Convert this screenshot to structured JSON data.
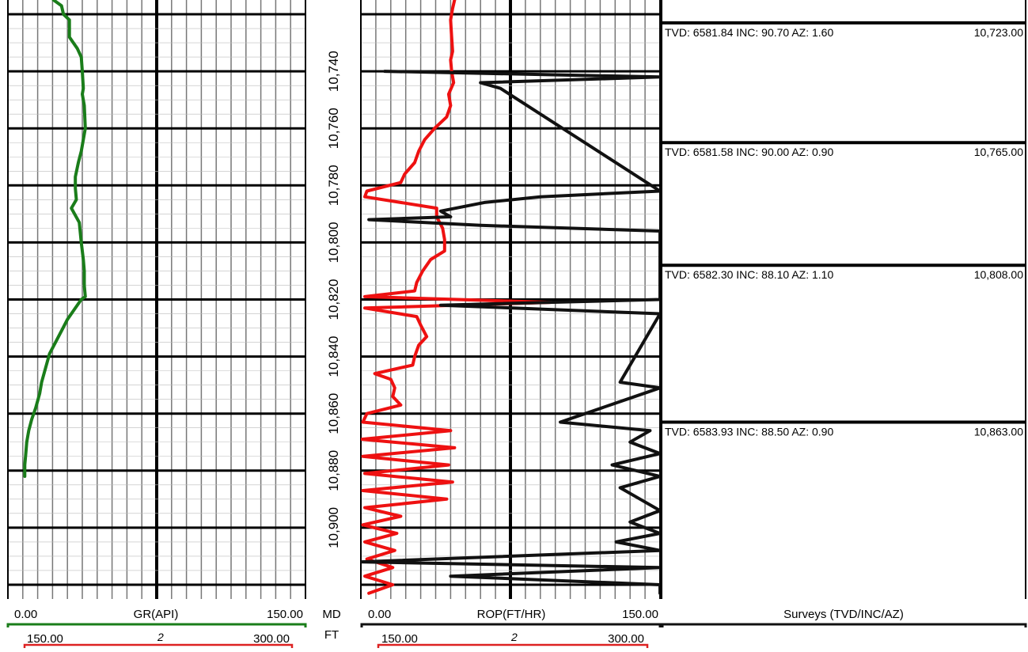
{
  "chart_data": {
    "type": "line",
    "depth_axis": {
      "label": "MD",
      "unit": "FT",
      "range": [
        10715,
        10925
      ],
      "ticks": [
        "10,740",
        "10,760",
        "10,780",
        "10,800",
        "10,820",
        "10,840",
        "10,860",
        "10,880",
        "10,900"
      ]
    },
    "tracks": [
      {
        "name": "GR(API)",
        "scale": [
          "0.00",
          "150.00"
        ],
        "backup_scale": [
          "150.00",
          "300.00"
        ],
        "backup_label": "2",
        "xlim": [
          0,
          150
        ],
        "series": [
          {
            "name": "GR(API)",
            "color": "#1a7d1a",
            "points": [
              [
                10715,
                23
              ],
              [
                10717,
                27
              ],
              [
                10720,
                28
              ],
              [
                10722,
                31
              ],
              [
                10728,
                31
              ],
              [
                10732,
                35
              ],
              [
                10735,
                37
              ],
              [
                10740,
                37.5
              ],
              [
                10746,
                38
              ],
              [
                10748,
                37.5
              ],
              [
                10752,
                38.5
              ],
              [
                10760,
                39
              ],
              [
                10768,
                37
              ],
              [
                10772,
                35.5
              ],
              [
                10777,
                34
              ],
              [
                10781,
                34
              ],
              [
                10785,
                34.5
              ],
              [
                10788,
                32
              ],
              [
                10793,
                36
              ],
              [
                10800,
                37
              ],
              [
                10806,
                38
              ],
              [
                10810,
                38.5
              ],
              [
                10815,
                38.5
              ],
              [
                10819,
                39
              ],
              [
                10820,
                37
              ],
              [
                10824,
                33
              ],
              [
                10827,
                30
              ],
              [
                10831,
                27
              ],
              [
                10835,
                24
              ],
              [
                10839,
                21
              ],
              [
                10844,
                19
              ],
              [
                10849,
                17
              ],
              [
                10853,
                16
              ],
              [
                10858,
                14
              ],
              [
                10862,
                12
              ],
              [
                10866,
                10.5
              ],
              [
                10870,
                9.5
              ],
              [
                10874,
                9
              ],
              [
                10878,
                8.5
              ],
              [
                10882,
                8.5
              ]
            ]
          }
        ]
      },
      {
        "name": "ROP(FT/HR)",
        "scale": [
          "0.00",
          "150.00"
        ],
        "backup_scale": [
          "150.00",
          "300.00"
        ],
        "backup_label": "2",
        "xlim": [
          0,
          150
        ],
        "series": [
          {
            "name": "ROP",
            "color": "#ee1111",
            "points": [
              [
                10715,
                47
              ],
              [
                10718,
                46
              ],
              [
                10722,
                45
              ],
              [
                10728,
                45.5
              ],
              [
                10733,
                46
              ],
              [
                10736,
                45
              ],
              [
                10740,
                45.5
              ],
              [
                10744,
                46.5
              ],
              [
                10748,
                44
              ],
              [
                10752,
                45
              ],
              [
                10756,
                43
              ],
              [
                10760,
                37
              ],
              [
                10764,
                32
              ],
              [
                10768,
                29
              ],
              [
                10772,
                27
              ],
              [
                10776,
                22
              ],
              [
                10779,
                20
              ],
              [
                10782,
                3
              ],
              [
                10784,
                2
              ],
              [
                10788,
                38
              ],
              [
                10791,
                38
              ],
              [
                10795,
                41
              ],
              [
                10799,
                42
              ],
              [
                10803,
                42
              ],
              [
                10806,
                35
              ],
              [
                10810,
                31
              ],
              [
                10814,
                28
              ],
              [
                10817,
                27
              ],
              [
                10819,
                2
              ],
              [
                10821,
                95
              ],
              [
                10823,
                2
              ],
              [
                10826,
                28
              ],
              [
                10829,
                30
              ],
              [
                10833,
                33
              ],
              [
                10836,
                29
              ],
              [
                10840,
                27
              ],
              [
                10843,
                26
              ],
              [
                10846,
                7
              ],
              [
                10848,
                15
              ],
              [
                10851,
                17
              ],
              [
                10854,
                16
              ],
              [
                10857,
                20
              ],
              [
                10860,
                3
              ],
              [
                10863,
                1
              ],
              [
                10866,
                45
              ],
              [
                10869,
                0.5
              ],
              [
                10872,
                47
              ],
              [
                10875,
                1
              ],
              [
                10878,
                44
              ],
              [
                10881,
                2
              ],
              [
                10884,
                46
              ],
              [
                10887,
                1
              ],
              [
                10890,
                43
              ],
              [
                10893,
                2
              ],
              [
                10896,
                20
              ],
              [
                10899,
                1
              ],
              [
                10902,
                18
              ],
              [
                10905,
                2
              ],
              [
                10908,
                17
              ],
              [
                10911,
                3
              ],
              [
                10914,
                16
              ],
              [
                10917,
                2
              ],
              [
                10920,
                16
              ],
              [
                10923,
                4
              ]
            ]
          },
          {
            "name": "ROP backup",
            "color": "#111111",
            "points": [
              [
                10740,
                12
              ],
              [
                10742,
                150
              ],
              [
                10744,
                60
              ],
              [
                10746,
                70
              ],
              [
                10782,
                150
              ],
              [
                10784,
                90
              ],
              [
                10786,
                62
              ],
              [
                10789,
                40
              ],
              [
                10791,
                45
              ],
              [
                10792,
                4
              ],
              [
                10794,
                60
              ],
              [
                10796,
                150
              ],
              [
                10820,
                150
              ],
              [
                10822,
                40
              ],
              [
                10825,
                150
              ],
              [
                10849,
                130
              ],
              [
                10851,
                150
              ],
              [
                10863,
                100
              ],
              [
                10866,
                145
              ],
              [
                10870,
                135
              ],
              [
                10874,
                150
              ],
              [
                10878,
                126
              ],
              [
                10882,
                150
              ],
              [
                10886,
                130
              ],
              [
                10890,
                140
              ],
              [
                10894,
                150
              ],
              [
                10898,
                135
              ],
              [
                10902,
                150
              ],
              [
                10905,
                128
              ],
              [
                10908,
                150
              ],
              [
                10912,
                0
              ],
              [
                10914,
                150
              ],
              [
                10917,
                45
              ],
              [
                10920,
                150
              ],
              [
                10923,
                150
              ]
            ]
          }
        ]
      }
    ],
    "surveys": {
      "title": "Surveys (TVD/INC/AZ)",
      "items": [
        {
          "md": 10723,
          "text": "TVD: 6581.84 INC: 90.70 AZ: 1.60",
          "depth_label": "10,723.00"
        },
        {
          "md": 10765,
          "text": "TVD: 6581.58 INC: 90.00 AZ: 0.90",
          "depth_label": "10,765.00"
        },
        {
          "md": 10808,
          "text": "TVD: 6582.30 INC: 88.10 AZ: 1.10",
          "depth_label": "10,808.00"
        },
        {
          "md": 10863,
          "text": "TVD: 6583.93 INC: 88.50 AZ: 0.90",
          "depth_label": "10,863.00"
        }
      ]
    },
    "colors": {
      "gr": "#1a7d1a",
      "rop": "#ee1111",
      "rop_backup": "#111111",
      "backup_scale": "#dd2222"
    }
  },
  "header": {
    "gr_min": "0.00",
    "gr_name": "GR(API)",
    "gr_max": "150.00",
    "gr_b_min": "150.00",
    "gr_b_mult": "2",
    "gr_b_max": "300.00",
    "md_label": "MD",
    "ft_label": "FT",
    "rop_min": "0.00",
    "rop_name": "ROP(FT/HR)",
    "rop_max": "150.00",
    "rop_b_min": "150.00",
    "rop_b_mult": "2",
    "rop_b_max": "300.00",
    "surveys_label": "Surveys (TVD/INC/AZ)"
  }
}
